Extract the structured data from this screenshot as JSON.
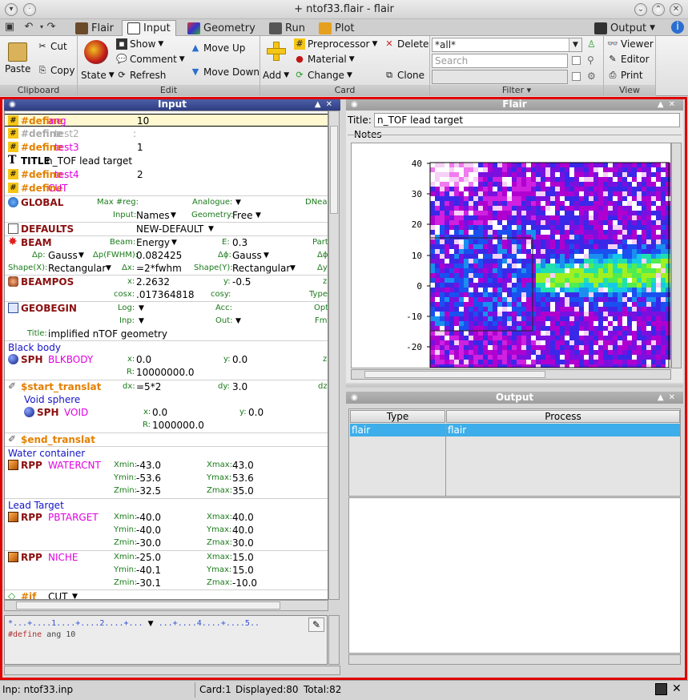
{
  "window": {
    "title": "+ ntof33.flair - flair"
  },
  "tabs": [
    {
      "label": "Flair"
    },
    {
      "label": "Input"
    },
    {
      "label": "Geometry"
    },
    {
      "label": "Run"
    },
    {
      "label": "Plot"
    }
  ],
  "output_tab": {
    "label": "Output"
  },
  "ribbon": {
    "clipboard": {
      "paste": "Paste",
      "cut": "Cut",
      "copy": "Copy",
      "group": "Clipboard"
    },
    "edit": {
      "state": "State",
      "show": "Show",
      "comment": "Comment",
      "refresh": "Refresh",
      "move_up": "Move Up",
      "move_down": "Move Down",
      "group": "Edit"
    },
    "card": {
      "add": "Add",
      "preprocessor": "Preprocessor",
      "material": "Material",
      "change": "Change",
      "delete": "Delete",
      "clone": "Clone",
      "group": "Card"
    },
    "filter": {
      "all_value": "*all*",
      "search_placeholder": "Search",
      "group": "Filter"
    },
    "view": {
      "viewer": "Viewer",
      "editor": "Editor",
      "print": "Print",
      "group": "View"
    }
  },
  "input_panel": {
    "title": "Input",
    "rows": {
      "def_ang": {
        "k": "#define",
        "name": "ang",
        "val": "10"
      },
      "def_test2": {
        "k": "#define",
        "name": "test2"
      },
      "def_test3": {
        "k": "#define",
        "name": "test3",
        "val": "1"
      },
      "title_card": {
        "k": "TITLE",
        "val": "n_TOF lead target"
      },
      "def_test4": {
        "k": "#define",
        "name": "test4",
        "val": "2"
      },
      "def_cut": {
        "k": "#define",
        "name": "CUT"
      },
      "global": {
        "k": "GLOBAL",
        "l1": "Max #reg:",
        "l2": "Analogue:",
        "l3": "DNear",
        "l4": "Input:",
        "v4": "Names",
        "l5": "Geometry:",
        "v5": "Free"
      },
      "defaults": {
        "k": "DEFAULTS",
        "val": "NEW-DEFAULT"
      },
      "beam": {
        "k": "BEAM",
        "l1": "Beam:",
        "v1": "Energy",
        "l2": "E:",
        "v2": "0.3",
        "l3": "Part",
        "l4": "Δp:",
        "v4": "Gauss",
        "l5": "Δp(FWHM):",
        "v5": "0.082425",
        "l6": "Δϕ:",
        "v6": "Gauss",
        "l7": "Δϕ",
        "l8": "Shape(X):",
        "v8": "Rectangular",
        "l9": "Δx:",
        "v9": "=2*fwhm",
        "l10": "Shape(Y):",
        "v10": "Rectangular",
        "l11": "Δy"
      },
      "beampos": {
        "k": "BEAMPOS",
        "l1": "x:",
        "v1": "2.2632",
        "l2": "y:",
        "v2": "-0.5",
        "l3": "z",
        "l4": "cosx:",
        "v4": ".017364818",
        "l5": "cosy:",
        "l6": "Type"
      },
      "geobegin": {
        "k": "GEOBEGIN",
        "l1": "Log:",
        "l2": "Acc:",
        "l3": "Opt",
        "l4": "Inp:",
        "l5": "Out:",
        "l6": "Fmt",
        "l7": "Title:",
        "v7": "implified nTOF geometry"
      },
      "black_body": "Black body",
      "blkbody": {
        "k": "SPH",
        "name": "BLKBODY",
        "lx": "x:",
        "vx": "0.0",
        "ly": "y:",
        "vy": "0.0",
        "lz": "z",
        "lr": "R:",
        "vr": "10000000.0"
      },
      "start_translat": {
        "k": "$start_translat",
        "ldx": "dx:",
        "vdx": "=5*2",
        "ldy": "dy:",
        "vdy": "3.0",
        "ldz": "dz"
      },
      "void_sphere": "Void sphere",
      "void": {
        "k": "SPH",
        "name": "VOID",
        "lx": "x:",
        "vx": "0.0",
        "ly": "y:",
        "vy": "0.0",
        "lr": "R:",
        "vr": "1000000.0"
      },
      "end_translat": {
        "k": "$end_translat"
      },
      "water_container": "Water container",
      "watercnt": {
        "k": "RPP",
        "name": "WATERCNT",
        "xmin": "-43.0",
        "xmax": "43.0",
        "ymin": "-53.6",
        "ymax": "53.6",
        "zmin": "-32.5",
        "zmax": "35.0"
      },
      "lead_target": "Lead Target",
      "pbtarget": {
        "k": "RPP",
        "name": "PBTARGET",
        "xmin": "-40.0",
        "xmax": "40.0",
        "ymin": "-40.0",
        "ymax": "40.0",
        "zmin": "-30.0",
        "zmax": "30.0"
      },
      "niche": {
        "k": "RPP",
        "name": "NICHE",
        "xmin": "-25.0",
        "xmax": "15.0",
        "ymin": "-40.1",
        "ymax": "15.0",
        "zmin": "-30.1",
        "zmax": "-10.0"
      },
      "if_cut": {
        "k": "#if",
        "val": "CUT"
      },
      "labels": {
        "xmin": "Xmin:",
        "xmax": "Xmax:",
        "ymin": "Ymin:",
        "ymax": "Ymax:",
        "zmin": "Zmin:",
        "zmax": "Zmax:"
      }
    }
  },
  "editor": {
    "ruler": "*...+....1....+....2....+...",
    "ruler2": "...+....4....+....5..",
    "line1_kw": "#define",
    "line1_rest": " ang 10"
  },
  "flair_panel": {
    "title": "Flair",
    "title_label": "Title:",
    "title_value": "n_TOF lead target",
    "notes_label": "Notes"
  },
  "plot": {
    "y_ticks": [
      "40",
      "30",
      "20",
      "10",
      "0",
      "-10",
      "-20"
    ]
  },
  "output_panel": {
    "title": "Output",
    "col_type": "Type",
    "col_process": "Process",
    "row_type": "flair",
    "row_process": "flair"
  },
  "status": {
    "inp": "Inp: ntof33.inp",
    "card": "Card:1",
    "displayed": "Displayed:80",
    "total": "Total:82"
  },
  "colors": {
    "accent_blue": "#3c4f9c",
    "frame_red": "#e00000",
    "selection": "#3daee9"
  }
}
